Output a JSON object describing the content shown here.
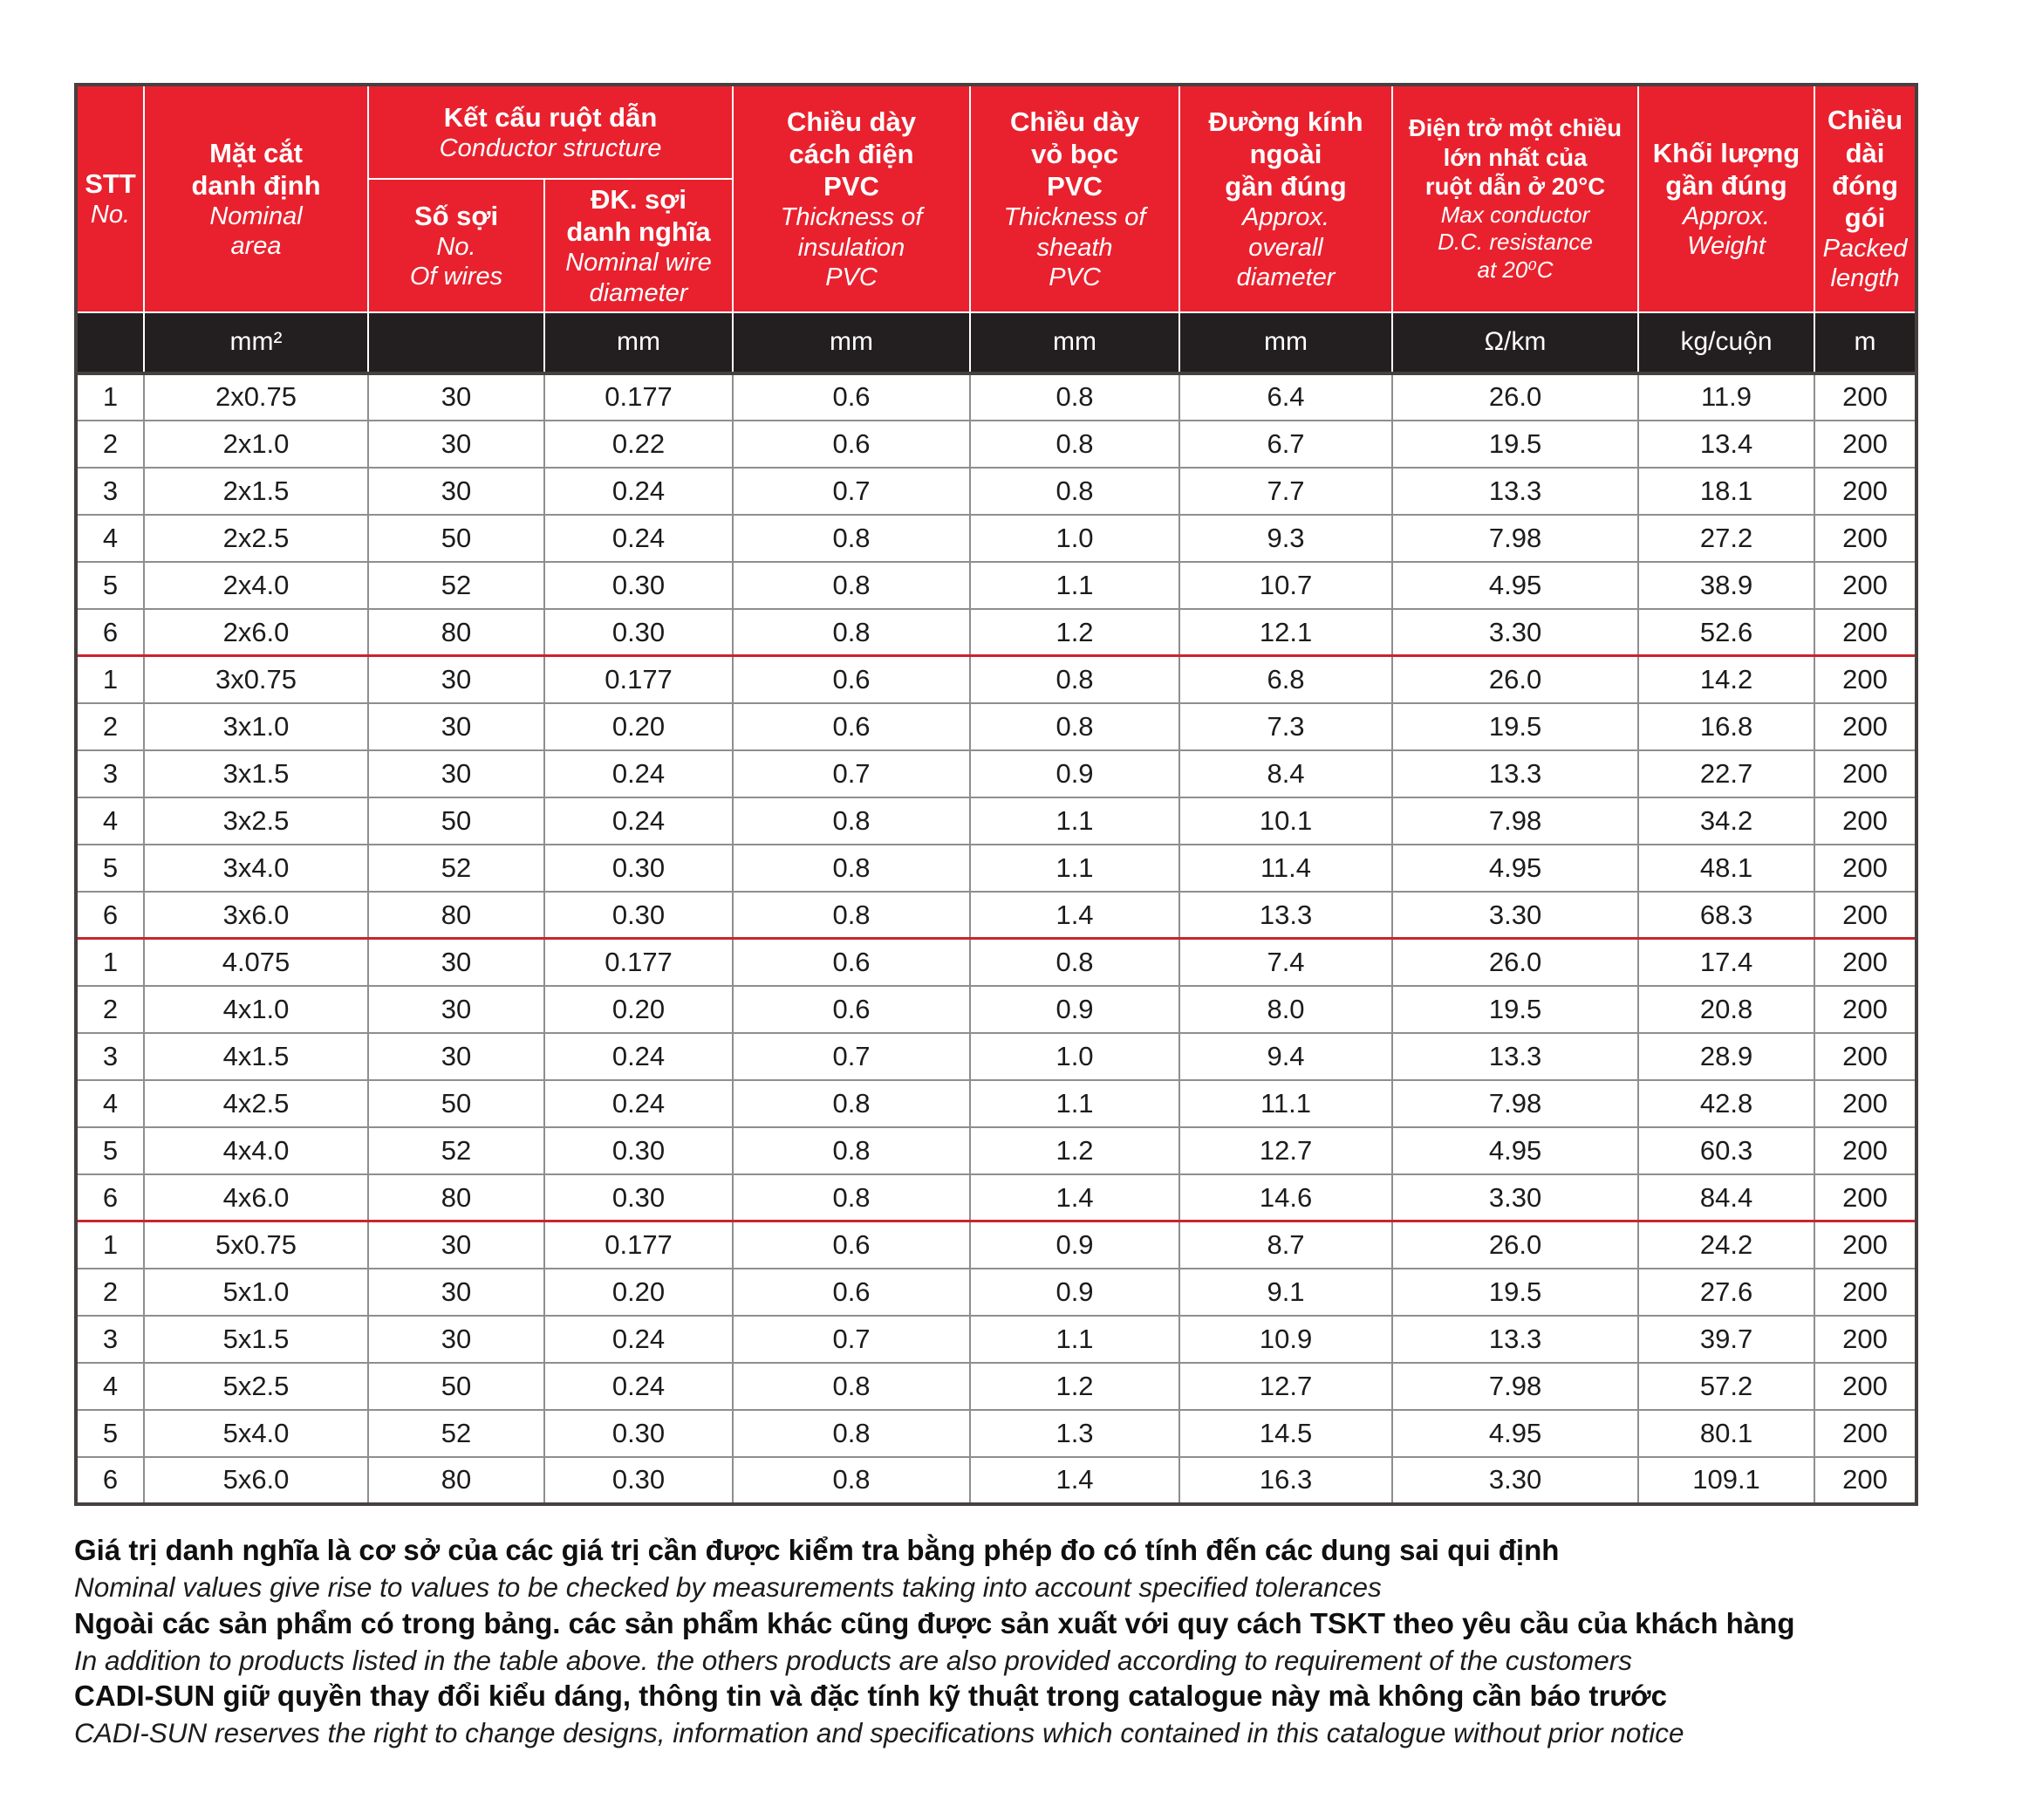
{
  "colors": {
    "accent_red": "#e9212e",
    "units_black": "#231f20",
    "separator_red": "#c9252d",
    "grid_gray": "#8e8e8e"
  },
  "table": {
    "columns": {
      "stt": {
        "vn": "STT",
        "en": "No."
      },
      "area": {
        "vn": "Mặt cắt\ndanh định",
        "en": "Nominal\narea"
      },
      "conductor": {
        "vn": "Kết cấu ruột dẫn",
        "en": "Conductor structure"
      },
      "wires": {
        "vn": "Số sợi",
        "en": "No.\nOf wires"
      },
      "wire_diameter": {
        "vn": "ĐK. sợi\ndanh nghĩa",
        "en": "Nominal wire\ndiameter"
      },
      "insulation": {
        "vn": "Chiều dày\ncách điện\nPVC",
        "en": "Thickness of\ninsulation\nPVC"
      },
      "sheath": {
        "vn": "Chiều dày\nvỏ bọc\nPVC",
        "en": "Thickness of\nsheath\nPVC"
      },
      "overall_diameter": {
        "vn": "Đường kính\nngoài\ngần đúng",
        "en": "Approx.\noverall\ndiameter"
      },
      "resistance": {
        "vn": "Điện trở một chiều\nlớn nhất của\nruột dẫn ở 20°C",
        "en": "Max conductor\nD.C. resistance\nat 20⁰C"
      },
      "weight": {
        "vn": "Khối lượng\ngần đúng",
        "en": "Approx.\nWeight"
      },
      "length": {
        "vn": "Chiều\ndài\nđóng\ngói",
        "en": "Packed\nlength"
      }
    },
    "units": [
      "",
      "mm²",
      "",
      "mm",
      "mm",
      "mm",
      "mm",
      "Ω/km",
      "kg/cuộn",
      "m"
    ],
    "groups": [
      {
        "rows": [
          [
            "1",
            "2x0.75",
            "30",
            "0.177",
            "0.6",
            "0.8",
            "6.4",
            "26.0",
            "11.9",
            "200"
          ],
          [
            "2",
            "2x1.0",
            "30",
            "0.22",
            "0.6",
            "0.8",
            "6.7",
            "19.5",
            "13.4",
            "200"
          ],
          [
            "3",
            "2x1.5",
            "30",
            "0.24",
            "0.7",
            "0.8",
            "7.7",
            "13.3",
            "18.1",
            "200"
          ],
          [
            "4",
            "2x2.5",
            "50",
            "0.24",
            "0.8",
            "1.0",
            "9.3",
            "7.98",
            "27.2",
            "200"
          ],
          [
            "5",
            "2x4.0",
            "52",
            "0.30",
            "0.8",
            "1.1",
            "10.7",
            "4.95",
            "38.9",
            "200"
          ],
          [
            "6",
            "2x6.0",
            "80",
            "0.30",
            "0.8",
            "1.2",
            "12.1",
            "3.30",
            "52.6",
            "200"
          ]
        ]
      },
      {
        "rows": [
          [
            "1",
            "3x0.75",
            "30",
            "0.177",
            "0.6",
            "0.8",
            "6.8",
            "26.0",
            "14.2",
            "200"
          ],
          [
            "2",
            "3x1.0",
            "30",
            "0.20",
            "0.6",
            "0.8",
            "7.3",
            "19.5",
            "16.8",
            "200"
          ],
          [
            "3",
            "3x1.5",
            "30",
            "0.24",
            "0.7",
            "0.9",
            "8.4",
            "13.3",
            "22.7",
            "200"
          ],
          [
            "4",
            "3x2.5",
            "50",
            "0.24",
            "0.8",
            "1.1",
            "10.1",
            "7.98",
            "34.2",
            "200"
          ],
          [
            "5",
            "3x4.0",
            "52",
            "0.30",
            "0.8",
            "1.1",
            "11.4",
            "4.95",
            "48.1",
            "200"
          ],
          [
            "6",
            "3x6.0",
            "80",
            "0.30",
            "0.8",
            "1.4",
            "13.3",
            "3.30",
            "68.3",
            "200"
          ]
        ]
      },
      {
        "rows": [
          [
            "1",
            "4.075",
            "30",
            "0.177",
            "0.6",
            "0.8",
            "7.4",
            "26.0",
            "17.4",
            "200"
          ],
          [
            "2",
            "4x1.0",
            "30",
            "0.20",
            "0.6",
            "0.9",
            "8.0",
            "19.5",
            "20.8",
            "200"
          ],
          [
            "3",
            "4x1.5",
            "30",
            "0.24",
            "0.7",
            "1.0",
            "9.4",
            "13.3",
            "28.9",
            "200"
          ],
          [
            "4",
            "4x2.5",
            "50",
            "0.24",
            "0.8",
            "1.1",
            "11.1",
            "7.98",
            "42.8",
            "200"
          ],
          [
            "5",
            "4x4.0",
            "52",
            "0.30",
            "0.8",
            "1.2",
            "12.7",
            "4.95",
            "60.3",
            "200"
          ],
          [
            "6",
            "4x6.0",
            "80",
            "0.30",
            "0.8",
            "1.4",
            "14.6",
            "3.30",
            "84.4",
            "200"
          ]
        ]
      },
      {
        "rows": [
          [
            "1",
            "5x0.75",
            "30",
            "0.177",
            "0.6",
            "0.9",
            "8.7",
            "26.0",
            "24.2",
            "200"
          ],
          [
            "2",
            "5x1.0",
            "30",
            "0.20",
            "0.6",
            "0.9",
            "9.1",
            "19.5",
            "27.6",
            "200"
          ],
          [
            "3",
            "5x1.5",
            "30",
            "0.24",
            "0.7",
            "1.1",
            "10.9",
            "13.3",
            "39.7",
            "200"
          ],
          [
            "4",
            "5x2.5",
            "50",
            "0.24",
            "0.8",
            "1.2",
            "12.7",
            "7.98",
            "57.2",
            "200"
          ],
          [
            "5",
            "5x4.0",
            "52",
            "0.30",
            "0.8",
            "1.3",
            "14.5",
            "4.95",
            "80.1",
            "200"
          ],
          [
            "6",
            "5x6.0",
            "80",
            "0.30",
            "0.8",
            "1.4",
            "16.3",
            "3.30",
            "109.1",
            "200"
          ]
        ]
      }
    ]
  },
  "notes": [
    {
      "style": "vn",
      "text": "Giá trị danh nghĩa là cơ sở của các giá trị cần được kiểm tra bằng phép đo có tính đến các dung sai qui định"
    },
    {
      "style": "en",
      "text": "Nominal values give rise to values to be checked by measurements taking into account specified tolerances"
    },
    {
      "style": "vn",
      "text": "Ngoài các sản phẩm có trong bảng. các sản phẩm khác cũng được sản xuất với quy cách TSKT theo yêu cầu của khách hàng"
    },
    {
      "style": "en",
      "text": "In addition to products listed in the table above. the others products are also provided according to requirement of the customers"
    },
    {
      "style": "vn",
      "text": "CADI-SUN giữ quyền thay đổi kiểu dáng, thông tin và đặc tính kỹ thuật trong catalogue này mà không cần báo trước"
    },
    {
      "style": "en",
      "text": "CADI-SUN reserves the right to change designs, information and specifications which contained in this catalogue without prior notice"
    }
  ]
}
